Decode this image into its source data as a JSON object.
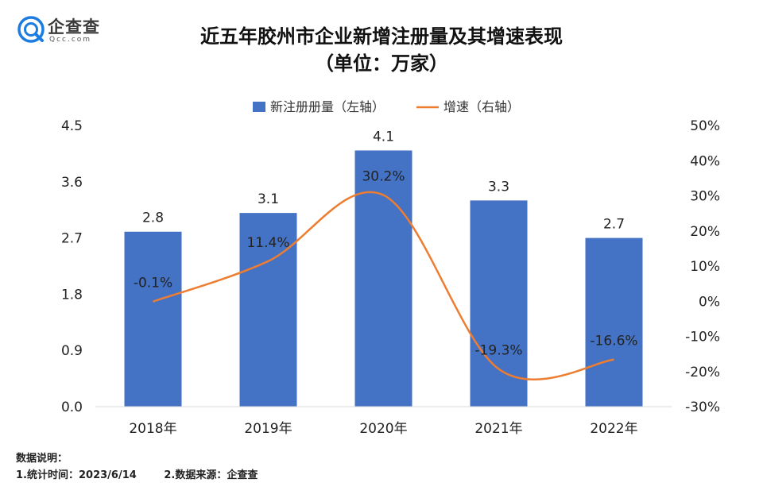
{
  "brand": {
    "name": "企查查",
    "sub": "Qcc.com",
    "color": "#1c7ce0"
  },
  "title": {
    "line1": "近五年胶州市企业新增注册量及其增速表现",
    "line2": "（单位：万家）"
  },
  "notes": {
    "heading": "数据说明：",
    "item1": "1.统计时间：2023/6/14",
    "item2": "2.数据来源：企查查"
  },
  "chart_data": {
    "type": "bar",
    "categories": [
      "2018年",
      "2019年",
      "2020年",
      "2021年",
      "2022年"
    ],
    "series": [
      {
        "name": "新注册册量（左轴）",
        "type": "bar",
        "axis": "left",
        "values": [
          2.8,
          3.1,
          4.1,
          3.3,
          2.7
        ],
        "labels": [
          "2.8",
          "3.1",
          "4.1",
          "3.3",
          "2.7"
        ],
        "color": "#4472c4"
      },
      {
        "name": "增速（右轴）",
        "type": "line",
        "axis": "right",
        "values": [
          -0.1,
          11.4,
          30.2,
          -19.3,
          -16.6
        ],
        "labels": [
          "-0.1%",
          "11.4%",
          "30.2%",
          "-19.3%",
          "-16.6%"
        ],
        "color": "#ed7d31"
      }
    ],
    "y_left": {
      "range": [
        0,
        4.5
      ],
      "ticks": [
        "0.0",
        "0.9",
        "1.8",
        "2.7",
        "3.6",
        "4.5"
      ]
    },
    "y_right": {
      "range": [
        -30,
        50
      ],
      "ticks": [
        "-30%",
        "-20%",
        "-10%",
        "0%",
        "10%",
        "20%",
        "30%",
        "40%",
        "50%"
      ]
    },
    "legend": "top-center",
    "grid": false
  }
}
